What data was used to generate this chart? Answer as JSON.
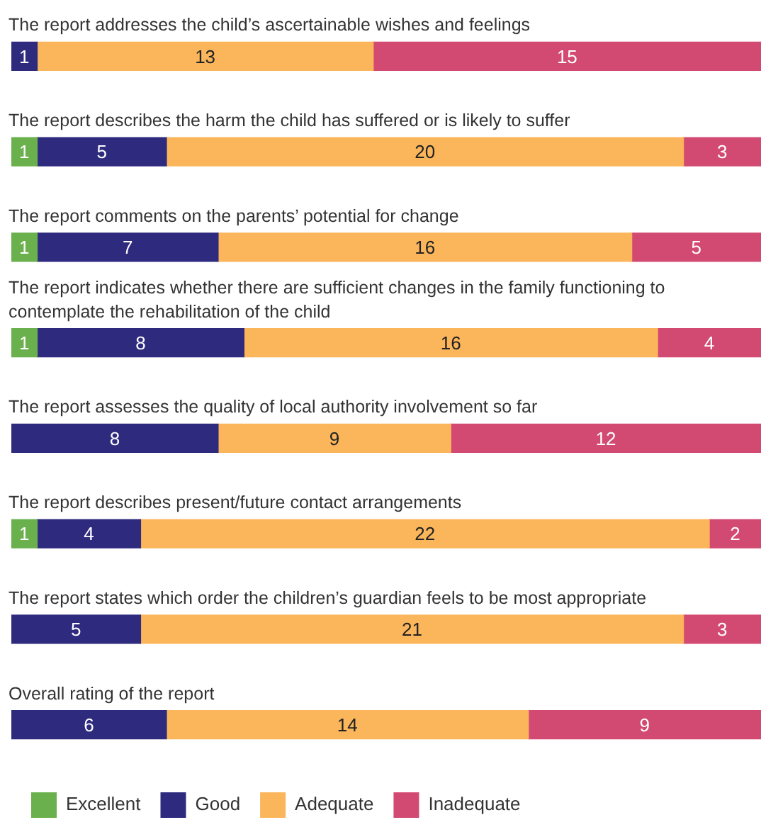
{
  "chart_data": {
    "type": "bar",
    "orientation": "horizontal",
    "stacked": true,
    "data_labels": true,
    "legend": "bottom left",
    "categories": [
      "The report addresses the child’s ascertainable wishes and feelings",
      "The report describes the harm the child has suffered or is likely to suffer",
      "The report comments on the parents’ potential for change",
      "The report indicates whether there are sufficient changes in the family functioning to contemplate the rehabilitation of the child",
      "The report assesses the quality of local authority involvement so far",
      "The report describes present/future contact arrangements",
      "The report states which order the children’s guardian feels to be most appropriate",
      "Overall rating of the report"
    ],
    "series": [
      {
        "name": "Excellent",
        "color": "#6ab04c",
        "values": [
          null,
          1,
          1,
          1,
          null,
          1,
          null,
          null
        ]
      },
      {
        "name": "Good",
        "color": "#2e2a7e",
        "values": [
          1,
          5,
          7,
          8,
          8,
          4,
          5,
          6
        ]
      },
      {
        "name": "Adequate",
        "color": "#fbb65c",
        "values": [
          13,
          20,
          16,
          16,
          9,
          22,
          21,
          14
        ]
      },
      {
        "name": "Inadequate",
        "color": "#d24a72",
        "values": [
          15,
          3,
          5,
          4,
          12,
          2,
          3,
          9
        ]
      }
    ]
  }
}
